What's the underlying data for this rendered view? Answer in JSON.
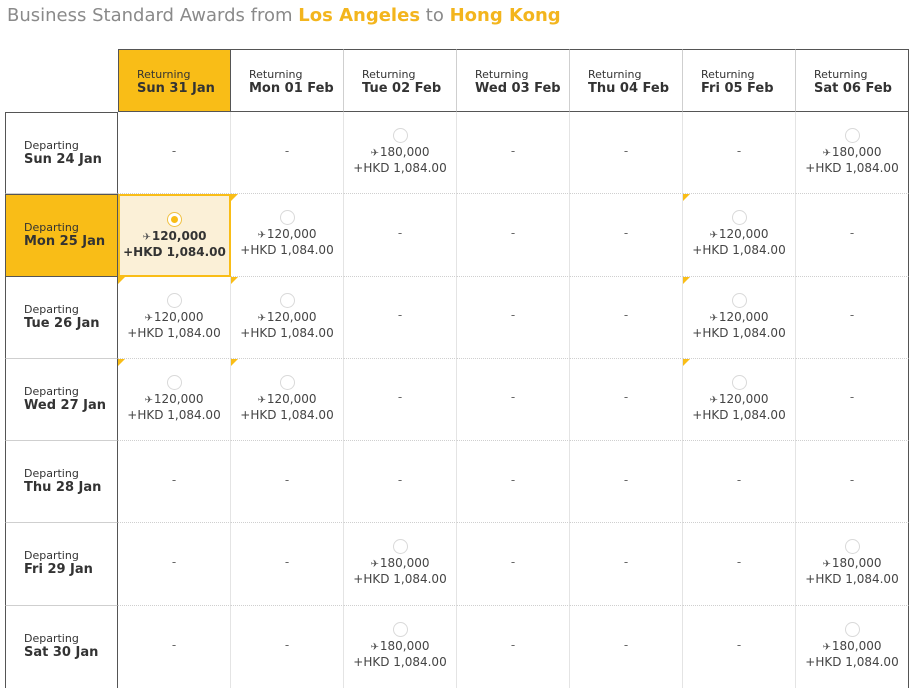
{
  "title": {
    "prefix": "Business Standard Awards from",
    "origin": "Los Angeles",
    "connector": "to",
    "destination": "Hong Kong"
  },
  "returning_label": "Returning",
  "departing_label": "Departing",
  "return_dates": [
    "Sun 31 Jan",
    "Mon 01 Feb",
    "Tue 02 Feb",
    "Wed 03 Feb",
    "Thu 04 Feb",
    "Fri 05 Feb",
    "Sat 06 Feb"
  ],
  "depart_dates": [
    "Sun 24 Jan",
    "Mon 25 Jan",
    "Tue 26 Jan",
    "Wed 27 Jan",
    "Thu 28 Jan",
    "Fri 29 Jan",
    "Sat 30 Jan"
  ],
  "selected_return_index": 0,
  "selected_depart_index": 1,
  "accent_color": "#f9bd17",
  "plane_icon": "plane-icon",
  "fares": [
    [
      null,
      null,
      {
        "miles": "180,000",
        "tax": "+HKD 1,084.00"
      },
      null,
      null,
      null,
      {
        "miles": "180,000",
        "tax": "+HKD 1,084.00"
      }
    ],
    [
      {
        "miles": "120,000",
        "tax": "+HKD 1,084.00",
        "flag": true,
        "selected": true
      },
      {
        "miles": "120,000",
        "tax": "+HKD 1,084.00",
        "flag": true
      },
      null,
      null,
      null,
      {
        "miles": "120,000",
        "tax": "+HKD 1,084.00",
        "flag": true
      },
      null
    ],
    [
      {
        "miles": "120,000",
        "tax": "+HKD 1,084.00",
        "flag": true
      },
      {
        "miles": "120,000",
        "tax": "+HKD 1,084.00",
        "flag": true
      },
      null,
      null,
      null,
      {
        "miles": "120,000",
        "tax": "+HKD 1,084.00",
        "flag": true
      },
      null
    ],
    [
      {
        "miles": "120,000",
        "tax": "+HKD 1,084.00",
        "flag": true
      },
      {
        "miles": "120,000",
        "tax": "+HKD 1,084.00",
        "flag": true
      },
      null,
      null,
      null,
      {
        "miles": "120,000",
        "tax": "+HKD 1,084.00",
        "flag": true
      },
      null
    ],
    [
      null,
      null,
      null,
      null,
      null,
      null,
      null
    ],
    [
      null,
      null,
      {
        "miles": "180,000",
        "tax": "+HKD 1,084.00"
      },
      null,
      null,
      null,
      {
        "miles": "180,000",
        "tax": "+HKD 1,084.00"
      }
    ],
    [
      null,
      null,
      {
        "miles": "180,000",
        "tax": "+HKD 1,084.00"
      },
      null,
      null,
      null,
      {
        "miles": "180,000",
        "tax": "+HKD 1,084.00"
      }
    ]
  ],
  "empty_cell_text": "-"
}
